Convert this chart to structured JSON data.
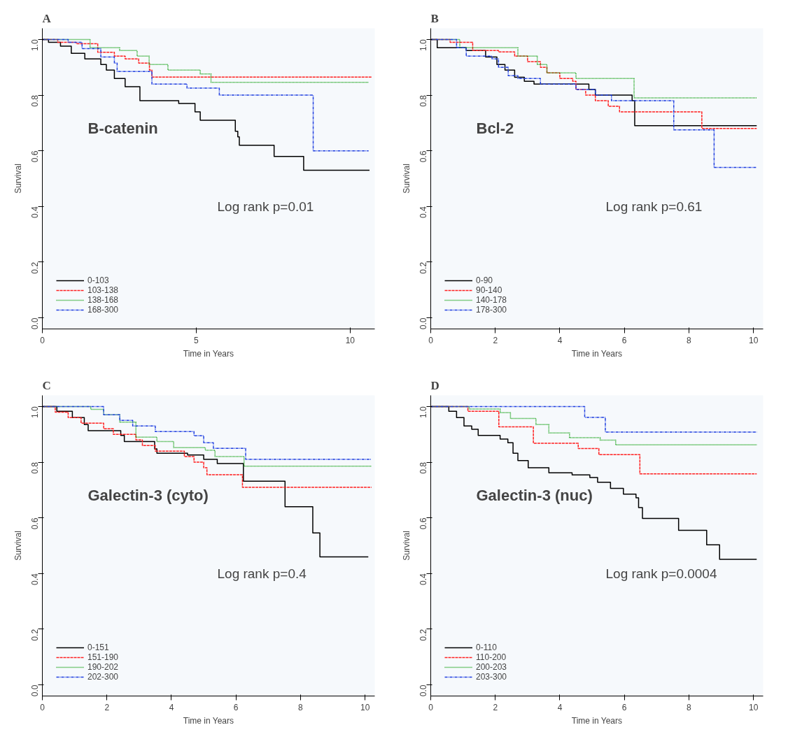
{
  "chart_data": [
    {
      "type": "step",
      "title": "A",
      "xlabel": "Time in Years",
      "ylabel": "Survival",
      "annotations": [
        "B-catenin",
        "Log rank p=0.01"
      ],
      "xlim": [
        0,
        10.8
      ],
      "xticks": [
        0,
        5,
        10
      ],
      "ylim": [
        -0.04,
        1.04
      ],
      "yticks": [
        {
          "value": 0,
          "label": "0.0"
        },
        {
          "value": 0.2,
          "label": "0.2"
        },
        {
          "value": 0.4,
          "label": "0.4"
        },
        {
          "value": 0.6,
          "label": "0.6"
        },
        {
          "value": 0.8,
          "label": "0.8"
        },
        {
          "value": 1,
          "label": "1.0"
        }
      ],
      "grid": false,
      "legend": "bottom left",
      "series": [
        {
          "name": "0-103",
          "color": "#000000",
          "line_style": "solid",
          "x": [
            0,
            0.2,
            0.59,
            0.94,
            1.38,
            1.9,
            2.08,
            2.34,
            2.69,
            3.17,
            4.43,
            4.96,
            5.13,
            6.27,
            6.35,
            6.4,
            7.53,
            8.49,
            10.63
          ],
          "values": [
            1,
            0.99,
            0.976,
            0.95,
            0.93,
            0.91,
            0.89,
            0.86,
            0.83,
            0.78,
            0.77,
            0.74,
            0.71,
            0.67,
            0.65,
            0.62,
            0.58,
            0.53,
            0.53
          ]
        },
        {
          "name": "103-138",
          "color": "#ff2020",
          "line_style": "dashed",
          "x": [
            0,
            0.5,
            1.1,
            1.8,
            2.34,
            2.69,
            3.13,
            3.48,
            3.56,
            10.7
          ],
          "values": [
            1,
            0.99,
            0.985,
            0.954,
            0.94,
            0.93,
            0.915,
            0.89,
            0.865,
            0.865
          ]
        },
        {
          "name": "138-168",
          "color": "#10a010",
          "line_style": "dotted",
          "x": [
            0,
            1.55,
            2.51,
            3.08,
            3.47,
            4.08,
            5.13,
            5.48,
            10.6
          ],
          "values": [
            1,
            0.97,
            0.96,
            0.94,
            0.91,
            0.89,
            0.876,
            0.846,
            0.846
          ]
        },
        {
          "name": "168-300",
          "color": "#1f3fe0",
          "line_style": "dashdot",
          "x": [
            0,
            0.84,
            1.29,
            1.9,
            2.34,
            2.43,
            3.56,
            4.7,
            5.75,
            8.8,
            10.6
          ],
          "values": [
            1,
            0.99,
            0.967,
            0.937,
            0.915,
            0.885,
            0.84,
            0.825,
            0.8,
            0.6,
            0.6
          ]
        }
      ]
    },
    {
      "type": "step",
      "title": "B",
      "xlabel": "Time in Years",
      "ylabel": "Survival",
      "annotations": [
        "Bcl-2",
        "Log rank p=0.61"
      ],
      "xlim": [
        0,
        10.3
      ],
      "xticks": [
        0,
        2,
        4,
        6,
        8,
        10
      ],
      "ylim": [
        -0.04,
        1.04
      ],
      "yticks": [
        {
          "value": 0,
          "label": "0.0"
        },
        {
          "value": 0.2,
          "label": "0.2"
        },
        {
          "value": 0.4,
          "label": "0.4"
        },
        {
          "value": 0.6,
          "label": "0.6"
        },
        {
          "value": 0.8,
          "label": "0.8"
        },
        {
          "value": 1,
          "label": "1.0"
        }
      ],
      "grid": false,
      "legend": "bottom left",
      "series": [
        {
          "name": "0-90",
          "color": "#000000",
          "line_style": "solid",
          "x": [
            0,
            0.2,
            1.1,
            1.7,
            2.05,
            2.3,
            2.6,
            2.9,
            3.2,
            4.9,
            5.1,
            6.24,
            6.32,
            10.1
          ],
          "values": [
            1,
            0.97,
            0.96,
            0.937,
            0.91,
            0.89,
            0.864,
            0.85,
            0.84,
            0.82,
            0.8,
            0.78,
            0.69,
            0.69
          ]
        },
        {
          "name": "90-140",
          "color": "#ff2020",
          "line_style": "dashed",
          "x": [
            0,
            0.6,
            1.3,
            2.1,
            2.6,
            3.0,
            3.4,
            3.6,
            4.0,
            4.4,
            4.5,
            4.8,
            5.1,
            5.5,
            5.85,
            8.4,
            10.1
          ],
          "values": [
            1,
            0.99,
            0.96,
            0.955,
            0.94,
            0.92,
            0.9,
            0.88,
            0.86,
            0.85,
            0.82,
            0.8,
            0.78,
            0.76,
            0.74,
            0.68,
            0.68
          ]
        },
        {
          "name": "140-178",
          "color": "#10a010",
          "line_style": "dotted",
          "x": [
            0,
            0.9,
            2.7,
            3.3,
            3.6,
            4.5,
            6.3,
            10.1
          ],
          "values": [
            1,
            0.97,
            0.94,
            0.91,
            0.88,
            0.86,
            0.79,
            0.79
          ]
        },
        {
          "name": "178-300",
          "color": "#1f3fe0",
          "line_style": "dashdot",
          "x": [
            0,
            0.8,
            1.1,
            1.9,
            2.1,
            2.4,
            2.7,
            3.4,
            4.5,
            5.1,
            5.6,
            7.53,
            8.78,
            10.1
          ],
          "values": [
            1,
            0.97,
            0.94,
            0.93,
            0.9,
            0.87,
            0.86,
            0.84,
            0.82,
            0.8,
            0.78,
            0.675,
            0.54,
            0.54
          ]
        }
      ]
    },
    {
      "type": "step",
      "title": "C",
      "xlabel": "Time in Years",
      "ylabel": "Survival",
      "annotations": [
        "Galectin-3 (cyto)",
        "Log rank p=0.4"
      ],
      "xlim": [
        0,
        10.3
      ],
      "xticks": [
        0,
        2,
        4,
        6,
        8,
        10
      ],
      "ylim": [
        -0.04,
        1.04
      ],
      "yticks": [
        {
          "value": 0,
          "label": "0.0"
        },
        {
          "value": 0.2,
          "label": "0.2"
        },
        {
          "value": 0.4,
          "label": "0.4"
        },
        {
          "value": 0.6,
          "label": "0.6"
        },
        {
          "value": 0.8,
          "label": "0.8"
        },
        {
          "value": 1,
          "label": "1.0"
        }
      ],
      "grid": false,
      "legend": "bottom left",
      "series": [
        {
          "name": "0-151",
          "color": "#000000",
          "line_style": "solid",
          "x": [
            0,
            0.45,
            0.93,
            1.3,
            1.42,
            2.43,
            2.54,
            3.48,
            3.55,
            4.5,
            5.0,
            5.42,
            6.23,
            7.52,
            8.38,
            8.6,
            10.1
          ],
          "values": [
            1,
            0.983,
            0.96,
            0.935,
            0.913,
            0.896,
            0.874,
            0.848,
            0.832,
            0.826,
            0.81,
            0.795,
            0.732,
            0.64,
            0.546,
            0.46,
            0.46
          ]
        },
        {
          "name": "151-190",
          "color": "#ff2020",
          "line_style": "dashed",
          "x": [
            0,
            0.4,
            0.8,
            1.2,
            1.9,
            2.2,
            2.9,
            3.1,
            3.5,
            4.4,
            4.7,
            5.0,
            5.1,
            6.2,
            10.2
          ],
          "values": [
            1,
            0.98,
            0.96,
            0.94,
            0.92,
            0.9,
            0.88,
            0.86,
            0.84,
            0.82,
            0.8,
            0.78,
            0.755,
            0.71,
            0.71
          ]
        },
        {
          "name": "190-202",
          "color": "#10a010",
          "line_style": "dotted",
          "x": [
            0,
            1.5,
            1.9,
            2.4,
            2.9,
            3.55,
            4.07,
            5.05,
            5.35,
            6.25,
            10.2
          ],
          "values": [
            1,
            0.99,
            0.97,
            0.944,
            0.89,
            0.874,
            0.852,
            0.843,
            0.82,
            0.786,
            0.786
          ]
        },
        {
          "name": "202-300",
          "color": "#1f3fe0",
          "line_style": "dashdot",
          "x": [
            0,
            1.9,
            2.4,
            2.8,
            3.5,
            4.7,
            5.0,
            5.3,
            6.3,
            10.2
          ],
          "values": [
            1,
            0.97,
            0.95,
            0.93,
            0.91,
            0.895,
            0.87,
            0.85,
            0.81,
            0.81
          ]
        }
      ]
    },
    {
      "type": "step",
      "title": "D",
      "xlabel": "Time in Years",
      "ylabel": "Survival",
      "annotations": [
        "Galectin-3 (nuc)",
        "Log rank p=0.0004"
      ],
      "xlim": [
        0,
        10.3
      ],
      "xticks": [
        0,
        2,
        4,
        6,
        8,
        10
      ],
      "ylim": [
        -0.04,
        1.04
      ],
      "yticks": [
        {
          "value": 0,
          "label": "0.0"
        },
        {
          "value": 0.2,
          "label": "0.2"
        },
        {
          "value": 0.4,
          "label": "0.4"
        },
        {
          "value": 0.6,
          "label": "0.6"
        },
        {
          "value": 0.8,
          "label": "0.8"
        },
        {
          "value": 1,
          "label": "1.0"
        }
      ],
      "grid": false,
      "legend": "bottom left",
      "series": [
        {
          "name": "0-110",
          "color": "#000000",
          "line_style": "solid",
          "x": [
            0,
            0.56,
            0.8,
            1.03,
            1.27,
            1.47,
            2.15,
            2.39,
            2.55,
            2.7,
            3.02,
            3.66,
            4.38,
            4.93,
            5.17,
            5.57,
            5.97,
            6.36,
            6.44,
            6.56,
            7.68,
            8.55,
            8.95,
            10.1
          ],
          "values": [
            1,
            0.983,
            0.96,
            0.93,
            0.918,
            0.896,
            0.883,
            0.87,
            0.832,
            0.806,
            0.78,
            0.762,
            0.754,
            0.745,
            0.728,
            0.706,
            0.685,
            0.672,
            0.637,
            0.598,
            0.555,
            0.503,
            0.451,
            0.451
          ]
        },
        {
          "name": "110-200",
          "color": "#ff2020",
          "line_style": "dashed",
          "x": [
            0,
            1.15,
            2.11,
            3.18,
            4.57,
            5.21,
            6.48,
            10.1
          ],
          "values": [
            1,
            0.983,
            0.927,
            0.868,
            0.849,
            0.827,
            0.758,
            0.758
          ]
        },
        {
          "name": "200-203",
          "color": "#10a010",
          "line_style": "dotted",
          "x": [
            0,
            1.19,
            2.15,
            2.47,
            3.26,
            3.66,
            4.3,
            5.25,
            5.73,
            10.1
          ],
          "values": [
            1,
            0.991,
            0.978,
            0.957,
            0.935,
            0.905,
            0.888,
            0.879,
            0.862,
            0.862
          ]
        },
        {
          "name": "203-300",
          "color": "#1f3fe0",
          "line_style": "dashdot",
          "x": [
            0,
            4.77,
            5.41,
            10.1
          ],
          "values": [
            1,
            0.961,
            0.908,
            0.908
          ]
        }
      ]
    }
  ]
}
